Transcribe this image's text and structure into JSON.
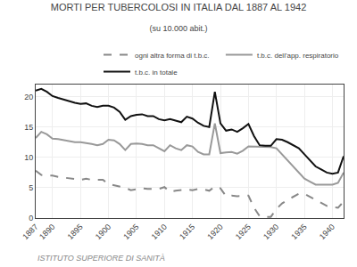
{
  "chart_data": {
    "type": "line",
    "title": "MORTI PER TUBERCOLOSI IN ITALIA DAL 1887 AL 1942",
    "subtitle": "(su 10.000 abit.)",
    "annotations": [
      "ISTITUTO SUPERIORE DI SANITÀ"
    ],
    "x": [
      1887,
      1888,
      1889,
      1890,
      1891,
      1892,
      1893,
      1894,
      1895,
      1896,
      1897,
      1898,
      1899,
      1900,
      1901,
      1902,
      1903,
      1904,
      1905,
      1906,
      1907,
      1908,
      1909,
      1910,
      1911,
      1912,
      1913,
      1914,
      1915,
      1916,
      1917,
      1918,
      1919,
      1920,
      1921,
      1922,
      1923,
      1924,
      1925,
      1926,
      1927,
      1928,
      1929,
      1930,
      1931,
      1932,
      1933,
      1934,
      1935,
      1936,
      1937,
      1938,
      1939,
      1940,
      1941,
      1942
    ],
    "series": [
      {
        "name": "ogni altra forma di t.b.c.",
        "color": "#888888",
        "line_style": "dashed",
        "values": [
          7.8,
          7.1,
          7.0,
          7.0,
          6.8,
          6.7,
          6.6,
          6.5,
          6.3,
          6.5,
          6.3,
          6.3,
          6.3,
          5.6,
          5.4,
          5.3,
          5.0,
          4.6,
          4.7,
          4.9,
          4.8,
          4.8,
          4.8,
          5.1,
          4.3,
          4.5,
          4.6,
          4.7,
          4.6,
          4.8,
          4.7,
          4.5,
          5.2,
          4.9,
          3.6,
          3.7,
          3.6,
          3.7,
          3.7,
          1.7,
          0.3,
          0.2,
          0.2,
          1.5,
          2.4,
          3.0,
          3.5,
          4.0,
          4.0,
          3.5,
          3.0,
          2.5,
          2.0,
          1.8,
          1.7,
          2.7
        ]
      },
      {
        "name": "t.b.c. dell'app. respiratorio",
        "color": "#999999",
        "line_style": "solid",
        "values": [
          13.2,
          14.2,
          13.8,
          13.1,
          13.0,
          12.8,
          12.7,
          12.5,
          12.5,
          12.4,
          12.2,
          12.0,
          12.2,
          12.9,
          12.8,
          12.2,
          11.2,
          12.2,
          12.3,
          12.2,
          12.0,
          12.0,
          11.5,
          11.0,
          12.0,
          11.5,
          11.2,
          12.0,
          11.8,
          10.9,
          10.5,
          10.5,
          15.6,
          10.7,
          10.8,
          10.9,
          10.6,
          11.1,
          11.8,
          11.8,
          11.7,
          11.7,
          11.7,
          11.5,
          10.5,
          9.5,
          8.5,
          7.5,
          6.5,
          6.0,
          5.5,
          5.5,
          5.5,
          5.5,
          5.8,
          7.5
        ]
      },
      {
        "name": "t.b.c. in totale",
        "color": "#111111",
        "line_style": "solid",
        "values": [
          21.0,
          21.3,
          20.8,
          20.1,
          19.8,
          19.5,
          19.3,
          19.0,
          18.8,
          18.9,
          18.5,
          18.3,
          18.5,
          18.5,
          18.2,
          17.5,
          16.2,
          16.8,
          17.0,
          17.1,
          16.8,
          16.8,
          16.3,
          16.1,
          16.3,
          16.0,
          15.8,
          16.7,
          16.4,
          15.7,
          15.2,
          15.0,
          20.8,
          15.6,
          14.4,
          14.6,
          14.2,
          14.8,
          15.5,
          13.5,
          12.0,
          11.9,
          11.9,
          13.0,
          12.9,
          12.5,
          12.0,
          11.5,
          10.5,
          9.5,
          8.5,
          8.0,
          7.5,
          7.3,
          7.5,
          10.2
        ]
      }
    ],
    "xlim": [
      1887,
      1942
    ],
    "ylim": [
      0,
      22
    ],
    "xticks": [
      1887,
      1890,
      1895,
      1900,
      1905,
      1910,
      1915,
      1920,
      1925,
      1930,
      1935,
      1940
    ],
    "yticks": [
      0,
      5,
      10,
      15,
      20
    ],
    "grid": true,
    "legend": "upper right"
  }
}
